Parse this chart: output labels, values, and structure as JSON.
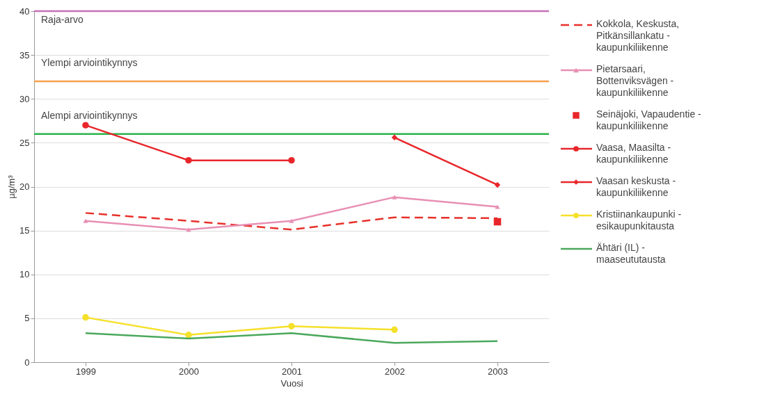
{
  "chart_data": {
    "type": "line",
    "xlabel": "Vuosi",
    "ylabel": "µg/m³",
    "categories": [
      "1999",
      "2000",
      "2001",
      "2002",
      "2003"
    ],
    "ylim": [
      0,
      40
    ],
    "yticks": [
      0,
      5,
      10,
      15,
      20,
      25,
      30,
      35,
      40
    ],
    "grid": "y",
    "legend": "right",
    "series": [
      {
        "name": "Kokkola, Keskusta, Pitkänsillankatu - kaupunkiliikenne",
        "color": "#e8302a",
        "line_style": "dashed",
        "marker": "none",
        "values": [
          17.0,
          16.1,
          15.1,
          16.5,
          16.4
        ]
      },
      {
        "name": "Pietarsaari, Bottenviksvägen - kaupunkiliikenne",
        "color": "#e88fb4",
        "marker": "triangle",
        "values": [
          16.1,
          15.1,
          16.1,
          18.8,
          17.7
        ]
      },
      {
        "name": "Seinäjoki, Vapaudentie - kaupunkiliikenne",
        "color": "#e8262a",
        "type": "scatter",
        "marker": "square",
        "values": [
          null,
          null,
          null,
          null,
          16.0
        ]
      },
      {
        "name": "Vaasa, Maasilta - kaupunkiliikenne",
        "color": "#e8262a",
        "marker": "circle",
        "values": [
          27.0,
          23.0,
          23.0,
          null,
          null
        ]
      },
      {
        "name": "Vaasan keskusta - kaupunkiliikenne",
        "color": "#e8262a",
        "marker": "diamond",
        "values": [
          null,
          null,
          null,
          25.6,
          20.2
        ]
      },
      {
        "name": "Kristiinankaupunki - esikaupunkitausta",
        "color": "#f5e02a",
        "marker": "circle",
        "values": [
          5.1,
          3.1,
          4.1,
          3.7,
          null
        ]
      },
      {
        "name": "Ähtäri (IL) - maaseututausta",
        "color": "#4aa85c",
        "marker": "none",
        "values": [
          3.3,
          2.7,
          3.3,
          2.2,
          2.4
        ]
      }
    ],
    "ref_lines": [
      {
        "axis": "y",
        "value": 40,
        "label": "Raja-arvo",
        "color": "#c470b8"
      },
      {
        "axis": "y",
        "value": 32,
        "label": "Ylempi arviointikynnys",
        "color": "#f5a04a"
      },
      {
        "axis": "y",
        "value": 26,
        "label": "Alempi arviointikynnys",
        "color": "#2bb34a"
      }
    ]
  }
}
